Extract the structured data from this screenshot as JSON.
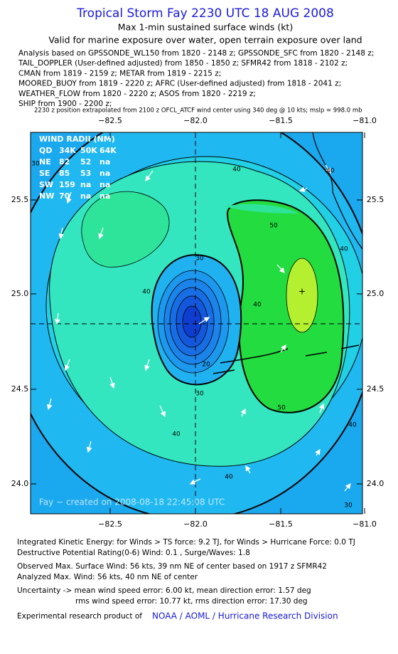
{
  "header": {
    "title": "Tropical Storm Fay 2230 UTC 18 AUG 2008",
    "subtitle": "Max 1-min sustained surface winds (kt)",
    "validity": "Valid for marine exposure over water, open terrain exposure over land",
    "analysis_lines": [
      "Analysis based on  GPSSONDE_WL150 from 1820 - 2148 z;  GPSSONDE_SFC from 1820 - 2148 z;",
      "TAIL_DOPPLER (User-defined adjusted) from 1850 - 1850 z;  SFMR42 from 1818 - 2102 z;",
      "CMAN from 1819 - 2159 z;  METAR from 1819 - 2215 z;",
      "MOORED_BUOY from 1819 - 2220 z;  AFRC (User-defined adjusted) from 1818 - 2041 z;",
      "WEATHER_FLOW from 1820 - 2220 z;  ASOS from 1820 - 2219 z;",
      "SHIP from 1900 - 2200 z;"
    ],
    "position_note": "2230 z position extrapolated from 2100 z OFCL_ATCF wind center using 340 deg @ 10 kts; mslp = 998.0 mb"
  },
  "map": {
    "lon_labels": [
      "−82.5",
      "−82.0",
      "−81.5",
      "−81.0"
    ],
    "lat_labels": [
      "25.5",
      "25.0",
      "24.5",
      "24.0"
    ],
    "wind_radii": {
      "title": "WIND RADII (NM)",
      "rows": [
        [
          "QD",
          "34K",
          "50K",
          "64K"
        ],
        [
          "NE",
          "82",
          "52",
          "na"
        ],
        [
          "SE",
          "85",
          "53",
          "na"
        ],
        [
          "SW",
          "159",
          "na",
          "na"
        ],
        [
          "NW",
          "70",
          "na",
          "na"
        ]
      ]
    },
    "contour_labels": [
      "40",
      "50",
      "40",
      "30",
      "30",
      "20",
      "40",
      "40",
      "40",
      "50",
      "40",
      "30",
      "40",
      "30",
      "40"
    ],
    "watermark": "Fay − created on 2008-08-18 22:45:08 UTC"
  },
  "footer": {
    "lines": [
      "Integrated Kinetic Energy:  for Winds > TS force: 9.2 TJ,  for Winds > Hurricane Force: 0.0 TJ",
      "Destructive Potential Rating(0-6)   Wind: 0.1 , Surge/Waves: 1.8",
      "Observed Max. Surface Wind: 56 kts, 39 nm NE of center based on 1917 z SFMR42",
      "Analyzed Max. Wind: 56 kts, 40 nm NE of center",
      "Uncertainty -> mean wind speed error: 6.00 kt,    mean direction error: 1.57 deg",
      "rms wind speed error: 10.77 kt,   rms direction error: 17.30 deg"
    ],
    "credit_prefix": "Experimental research product of",
    "credit_org": "NOAA / AOML / Hurricane Research Division"
  }
}
